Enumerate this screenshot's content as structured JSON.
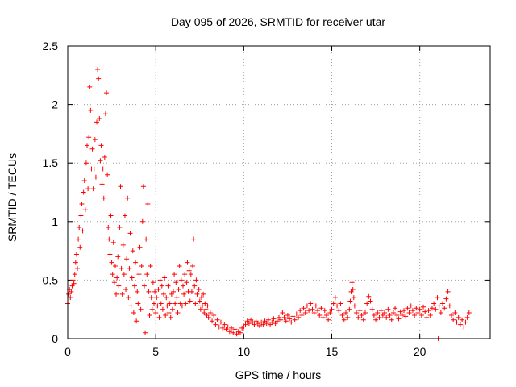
{
  "chart_data": {
    "type": "scatter",
    "title": "Day 095 of 2026, SRMTID for receiver utar",
    "xlabel": "GPS time / hours",
    "ylabel": "SRMTID / TECUs",
    "xlim": [
      0,
      24
    ],
    "ylim": [
      0,
      2.5
    ],
    "x_ticks": [
      0,
      5,
      10,
      15,
      20
    ],
    "x_tick_labels": [
      "0",
      "5",
      "10",
      "15",
      "20"
    ],
    "y_ticks": [
      0,
      0.5,
      1,
      1.5,
      2,
      2.5
    ],
    "y_tick_labels": [
      "0",
      "0.5",
      "1",
      "1.5",
      "2",
      "2.5"
    ],
    "grid": true,
    "marker": "+",
    "color": "#ff0000",
    "series": [
      {
        "name": "SRMTID",
        "points": [
          [
            0.0,
            0.3
          ],
          [
            0.05,
            0.38
          ],
          [
            0.1,
            0.42
          ],
          [
            0.15,
            0.35
          ],
          [
            0.2,
            0.4
          ],
          [
            0.25,
            0.45
          ],
          [
            0.3,
            0.5
          ],
          [
            0.35,
            0.47
          ],
          [
            0.4,
            0.55
          ],
          [
            0.45,
            0.65
          ],
          [
            0.5,
            0.72
          ],
          [
            0.55,
            0.6
          ],
          [
            0.6,
            0.85
          ],
          [
            0.65,
            0.95
          ],
          [
            0.7,
            0.78
          ],
          [
            0.75,
            1.05
          ],
          [
            0.8,
            1.15
          ],
          [
            0.85,
            0.92
          ],
          [
            0.9,
            1.25
          ],
          [
            0.95,
            1.35
          ],
          [
            1.0,
            1.1
          ],
          [
            1.05,
            1.5
          ],
          [
            1.1,
            1.65
          ],
          [
            1.15,
            1.28
          ],
          [
            1.2,
            1.72
          ],
          [
            1.25,
            2.15
          ],
          [
            1.3,
            1.95
          ],
          [
            1.35,
            1.45
          ],
          [
            1.4,
            1.62
          ],
          [
            1.45,
            1.28
          ],
          [
            1.5,
            1.45
          ],
          [
            1.55,
            1.7
          ],
          [
            1.6,
            1.38
          ],
          [
            1.65,
            1.85
          ],
          [
            1.7,
            2.3
          ],
          [
            1.75,
            2.22
          ],
          [
            1.8,
            1.88
          ],
          [
            1.85,
            1.52
          ],
          [
            1.9,
            1.65
          ],
          [
            1.95,
            1.32
          ],
          [
            2.0,
            1.45
          ],
          [
            2.05,
            1.2
          ],
          [
            2.1,
            1.55
          ],
          [
            2.15,
            1.92
          ],
          [
            2.2,
            2.1
          ],
          [
            2.25,
            1.4
          ],
          [
            2.3,
            0.95
          ],
          [
            2.35,
            0.85
          ],
          [
            2.4,
            0.72
          ],
          [
            2.45,
            1.05
          ],
          [
            2.5,
            0.65
          ],
          [
            2.55,
            0.55
          ],
          [
            2.6,
            0.82
          ],
          [
            2.65,
            0.48
          ],
          [
            2.7,
            0.62
          ],
          [
            2.75,
            0.38
          ],
          [
            2.8,
            0.52
          ],
          [
            2.85,
            0.7
          ],
          [
            2.9,
            0.45
          ],
          [
            2.95,
            0.95
          ],
          [
            3.0,
            1.3
          ],
          [
            3.05,
            0.6
          ],
          [
            3.1,
            0.38
          ],
          [
            3.15,
            0.8
          ],
          [
            3.2,
            0.55
          ],
          [
            3.25,
            1.05
          ],
          [
            3.3,
            0.42
          ],
          [
            3.35,
            0.68
          ],
          [
            3.4,
            1.2
          ],
          [
            3.45,
            0.35
          ],
          [
            3.5,
            0.6
          ],
          [
            3.55,
            0.9
          ],
          [
            3.6,
            0.28
          ],
          [
            3.65,
            0.52
          ],
          [
            3.7,
            0.75
          ],
          [
            3.75,
            0.22
          ],
          [
            3.8,
            0.45
          ],
          [
            3.85,
            0.65
          ],
          [
            3.9,
            0.15
          ],
          [
            3.95,
            0.4
          ],
          [
            4.0,
            0.3
          ],
          [
            4.05,
            0.55
          ],
          [
            4.1,
            0.78
          ],
          [
            4.15,
            0.25
          ],
          [
            4.2,
            0.62
          ],
          [
            4.25,
            1.0
          ],
          [
            4.3,
            1.3
          ],
          [
            4.35,
            0.45
          ],
          [
            4.4,
            0.05
          ],
          [
            4.45,
            0.85
          ],
          [
            4.5,
            0.55
          ],
          [
            4.55,
            1.15
          ],
          [
            4.6,
            0.4
          ],
          [
            4.65,
            0.2
          ],
          [
            4.7,
            0.62
          ],
          [
            4.75,
            0.35
          ],
          [
            4.8,
            0.25
          ],
          [
            4.85,
            0.48
          ],
          [
            4.9,
            0.3
          ],
          [
            4.95,
            0.4
          ],
          [
            5.0,
            0.22
          ],
          [
            5.05,
            0.35
          ],
          [
            5.1,
            0.28
          ],
          [
            5.15,
            0.42
          ],
          [
            5.2,
            0.18
          ],
          [
            5.25,
            0.5
          ],
          [
            5.3,
            0.3
          ],
          [
            5.35,
            0.45
          ],
          [
            5.4,
            0.25
          ],
          [
            5.45,
            0.38
          ],
          [
            5.5,
            0.52
          ],
          [
            5.55,
            0.2
          ],
          [
            5.6,
            0.35
          ],
          [
            5.65,
            0.28
          ],
          [
            5.7,
            0.45
          ],
          [
            5.75,
            0.22
          ],
          [
            5.8,
            0.3
          ],
          [
            5.85,
            0.18
          ],
          [
            5.9,
            0.38
          ],
          [
            5.95,
            0.25
          ],
          [
            6.0,
            0.4
          ],
          [
            6.05,
            0.55
          ],
          [
            6.1,
            0.3
          ],
          [
            6.15,
            0.48
          ],
          [
            6.2,
            0.35
          ],
          [
            6.25,
            0.22
          ],
          [
            6.3,
            0.42
          ],
          [
            6.35,
            0.62
          ],
          [
            6.4,
            0.3
          ],
          [
            6.45,
            0.5
          ],
          [
            6.5,
            0.28
          ],
          [
            6.55,
            0.45
          ],
          [
            6.6,
            0.38
          ],
          [
            6.65,
            0.55
          ],
          [
            6.7,
            0.3
          ],
          [
            6.75,
            0.48
          ],
          [
            6.8,
            0.65
          ],
          [
            6.85,
            0.4
          ],
          [
            6.9,
            0.58
          ],
          [
            6.95,
            0.32
          ],
          [
            7.0,
            0.55
          ],
          [
            7.05,
            0.4
          ],
          [
            7.1,
            0.62
          ],
          [
            7.15,
            0.85
          ],
          [
            7.2,
            0.45
          ],
          [
            7.25,
            0.3
          ],
          [
            7.3,
            0.5
          ],
          [
            7.35,
            0.38
          ],
          [
            7.4,
            0.28
          ],
          [
            7.45,
            0.42
          ],
          [
            7.5,
            0.32
          ],
          [
            7.55,
            0.25
          ],
          [
            7.6,
            0.35
          ],
          [
            7.65,
            0.28
          ],
          [
            7.7,
            0.38
          ],
          [
            7.75,
            0.22
          ],
          [
            7.8,
            0.3
          ],
          [
            7.85,
            0.25
          ],
          [
            7.9,
            0.2
          ],
          [
            7.95,
            0.28
          ],
          [
            8.0,
            0.18
          ],
          [
            8.1,
            0.22
          ],
          [
            8.2,
            0.15
          ],
          [
            8.3,
            0.2
          ],
          [
            8.4,
            0.12
          ],
          [
            8.5,
            0.16
          ],
          [
            8.6,
            0.1
          ],
          [
            8.7,
            0.14
          ],
          [
            8.8,
            0.09
          ],
          [
            8.9,
            0.12
          ],
          [
            9.0,
            0.08
          ],
          [
            9.1,
            0.1
          ],
          [
            9.2,
            0.06
          ],
          [
            9.3,
            0.09
          ],
          [
            9.4,
            0.05
          ],
          [
            9.5,
            0.08
          ],
          [
            9.6,
            0.04
          ],
          [
            9.7,
            0.06
          ],
          [
            9.8,
            0.05
          ],
          [
            9.9,
            0.09
          ],
          [
            10.0,
            0.1
          ],
          [
            10.1,
            0.12
          ],
          [
            10.2,
            0.15
          ],
          [
            10.3,
            0.13
          ],
          [
            10.4,
            0.16
          ],
          [
            10.5,
            0.14
          ],
          [
            10.6,
            0.12
          ],
          [
            10.7,
            0.15
          ],
          [
            10.8,
            0.13
          ],
          [
            10.9,
            0.11
          ],
          [
            11.0,
            0.14
          ],
          [
            11.1,
            0.12
          ],
          [
            11.2,
            0.15
          ],
          [
            11.3,
            0.13
          ],
          [
            11.4,
            0.16
          ],
          [
            11.5,
            0.12
          ],
          [
            11.6,
            0.14
          ],
          [
            11.7,
            0.17
          ],
          [
            11.8,
            0.13
          ],
          [
            11.9,
            0.15
          ],
          [
            12.0,
            0.18
          ],
          [
            12.1,
            0.16
          ],
          [
            12.2,
            0.22
          ],
          [
            12.3,
            0.18
          ],
          [
            12.4,
            0.15
          ],
          [
            12.5,
            0.2
          ],
          [
            12.6,
            0.17
          ],
          [
            12.7,
            0.14
          ],
          [
            12.8,
            0.19
          ],
          [
            12.9,
            0.16
          ],
          [
            13.0,
            0.21
          ],
          [
            13.1,
            0.18
          ],
          [
            13.2,
            0.24
          ],
          [
            13.3,
            0.2
          ],
          [
            13.4,
            0.26
          ],
          [
            13.5,
            0.22
          ],
          [
            13.6,
            0.28
          ],
          [
            13.7,
            0.24
          ],
          [
            13.8,
            0.3
          ],
          [
            13.9,
            0.25
          ],
          [
            14.0,
            0.22
          ],
          [
            14.1,
            0.28
          ],
          [
            14.2,
            0.24
          ],
          [
            14.3,
            0.2
          ],
          [
            14.4,
            0.26
          ],
          [
            14.5,
            0.18
          ],
          [
            14.6,
            0.24
          ],
          [
            14.7,
            0.2
          ],
          [
            14.8,
            0.16
          ],
          [
            14.9,
            0.22
          ],
          [
            15.0,
            0.25
          ],
          [
            15.1,
            0.3
          ],
          [
            15.2,
            0.35
          ],
          [
            15.3,
            0.28
          ],
          [
            15.4,
            0.24
          ],
          [
            15.5,
            0.3
          ],
          [
            15.6,
            0.2
          ],
          [
            15.7,
            0.16
          ],
          [
            15.8,
            0.22
          ],
          [
            15.9,
            0.18
          ],
          [
            16.0,
            0.25
          ],
          [
            16.05,
            0.32
          ],
          [
            16.1,
            0.4
          ],
          [
            16.15,
            0.48
          ],
          [
            16.2,
            0.42
          ],
          [
            16.25,
            0.35
          ],
          [
            16.3,
            0.28
          ],
          [
            16.4,
            0.22
          ],
          [
            16.5,
            0.18
          ],
          [
            16.6,
            0.24
          ],
          [
            16.7,
            0.2
          ],
          [
            16.8,
            0.16
          ],
          [
            16.9,
            0.22
          ],
          [
            17.0,
            0.3
          ],
          [
            17.1,
            0.36
          ],
          [
            17.2,
            0.32
          ],
          [
            17.3,
            0.25
          ],
          [
            17.4,
            0.2
          ],
          [
            17.5,
            0.16
          ],
          [
            17.6,
            0.22
          ],
          [
            17.7,
            0.18
          ],
          [
            17.8,
            0.24
          ],
          [
            17.9,
            0.2
          ],
          [
            18.0,
            0.22
          ],
          [
            18.1,
            0.18
          ],
          [
            18.2,
            0.25
          ],
          [
            18.3,
            0.2
          ],
          [
            18.4,
            0.16
          ],
          [
            18.5,
            0.22
          ],
          [
            18.6,
            0.26
          ],
          [
            18.7,
            0.2
          ],
          [
            18.8,
            0.17
          ],
          [
            18.9,
            0.23
          ],
          [
            19.0,
            0.2
          ],
          [
            19.1,
            0.24
          ],
          [
            19.2,
            0.19
          ],
          [
            19.3,
            0.26
          ],
          [
            19.4,
            0.22
          ],
          [
            19.5,
            0.28
          ],
          [
            19.6,
            0.24
          ],
          [
            19.7,
            0.2
          ],
          [
            19.8,
            0.26
          ],
          [
            19.9,
            0.22
          ],
          [
            20.0,
            0.25
          ],
          [
            20.1,
            0.2
          ],
          [
            20.2,
            0.27
          ],
          [
            20.3,
            0.23
          ],
          [
            20.4,
            0.18
          ],
          [
            20.5,
            0.24
          ],
          [
            20.6,
            0.2
          ],
          [
            20.7,
            0.26
          ],
          [
            20.8,
            0.3
          ],
          [
            20.9,
            0.25
          ],
          [
            21.0,
            0.35
          ],
          [
            21.05,
            0.0
          ],
          [
            21.1,
            0.28
          ],
          [
            21.2,
            0.22
          ],
          [
            21.3,
            0.3
          ],
          [
            21.4,
            0.26
          ],
          [
            21.5,
            0.34
          ],
          [
            21.6,
            0.4
          ],
          [
            21.7,
            0.28
          ],
          [
            21.8,
            0.2
          ],
          [
            21.9,
            0.16
          ],
          [
            22.0,
            0.22
          ],
          [
            22.1,
            0.14
          ],
          [
            22.2,
            0.18
          ],
          [
            22.3,
            0.12
          ],
          [
            22.4,
            0.16
          ],
          [
            22.5,
            0.1
          ],
          [
            22.6,
            0.14
          ],
          [
            22.7,
            0.18
          ],
          [
            22.8,
            0.22
          ]
        ]
      }
    ]
  }
}
